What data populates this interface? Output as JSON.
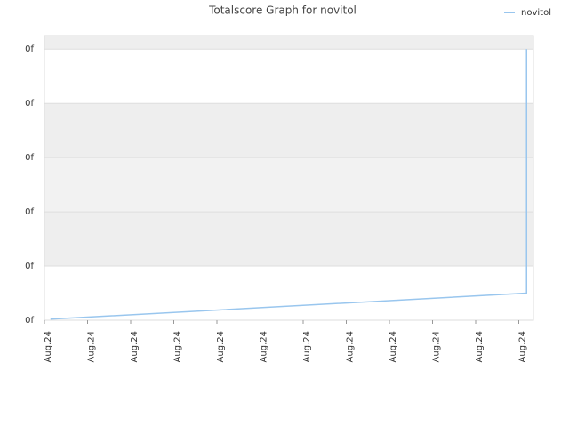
{
  "chart_data": {
    "type": "line",
    "title": "Totalscore Graph for novitol",
    "x": [
      0.14,
      11.18,
      11.18
    ],
    "series": [
      {
        "name": "novitol",
        "color": "#99c6ee",
        "values": [
          0.02,
          0.5,
          5
        ]
      }
    ],
    "xlim": [
      0,
      11.34
    ],
    "ylim": [
      0,
      5.25
    ],
    "xticks": [
      {
        "value": 0,
        "label": "Aug.24"
      },
      {
        "value": 1,
        "label": "Aug.24"
      },
      {
        "value": 2,
        "label": "Aug.24"
      },
      {
        "value": 3,
        "label": "Aug.24"
      },
      {
        "value": 4,
        "label": "Aug.24"
      },
      {
        "value": 5,
        "label": "Aug.24"
      },
      {
        "value": 6,
        "label": "Aug.24"
      },
      {
        "value": 7,
        "label": "Aug.24"
      },
      {
        "value": 8,
        "label": "Aug.24"
      },
      {
        "value": 9,
        "label": "Aug.24"
      },
      {
        "value": 10,
        "label": "Aug.24"
      },
      {
        "value": 11,
        "label": "Aug.24"
      }
    ],
    "yticks": [
      {
        "value": 0,
        "label": "0f"
      },
      {
        "value": 1,
        "label": "0f"
      },
      {
        "value": 2,
        "label": "0f"
      },
      {
        "value": 3,
        "label": "0f"
      },
      {
        "value": 4,
        "label": "0f"
      },
      {
        "value": 5,
        "label": "0f"
      }
    ],
    "grid": true,
    "legend": "top-right"
  }
}
